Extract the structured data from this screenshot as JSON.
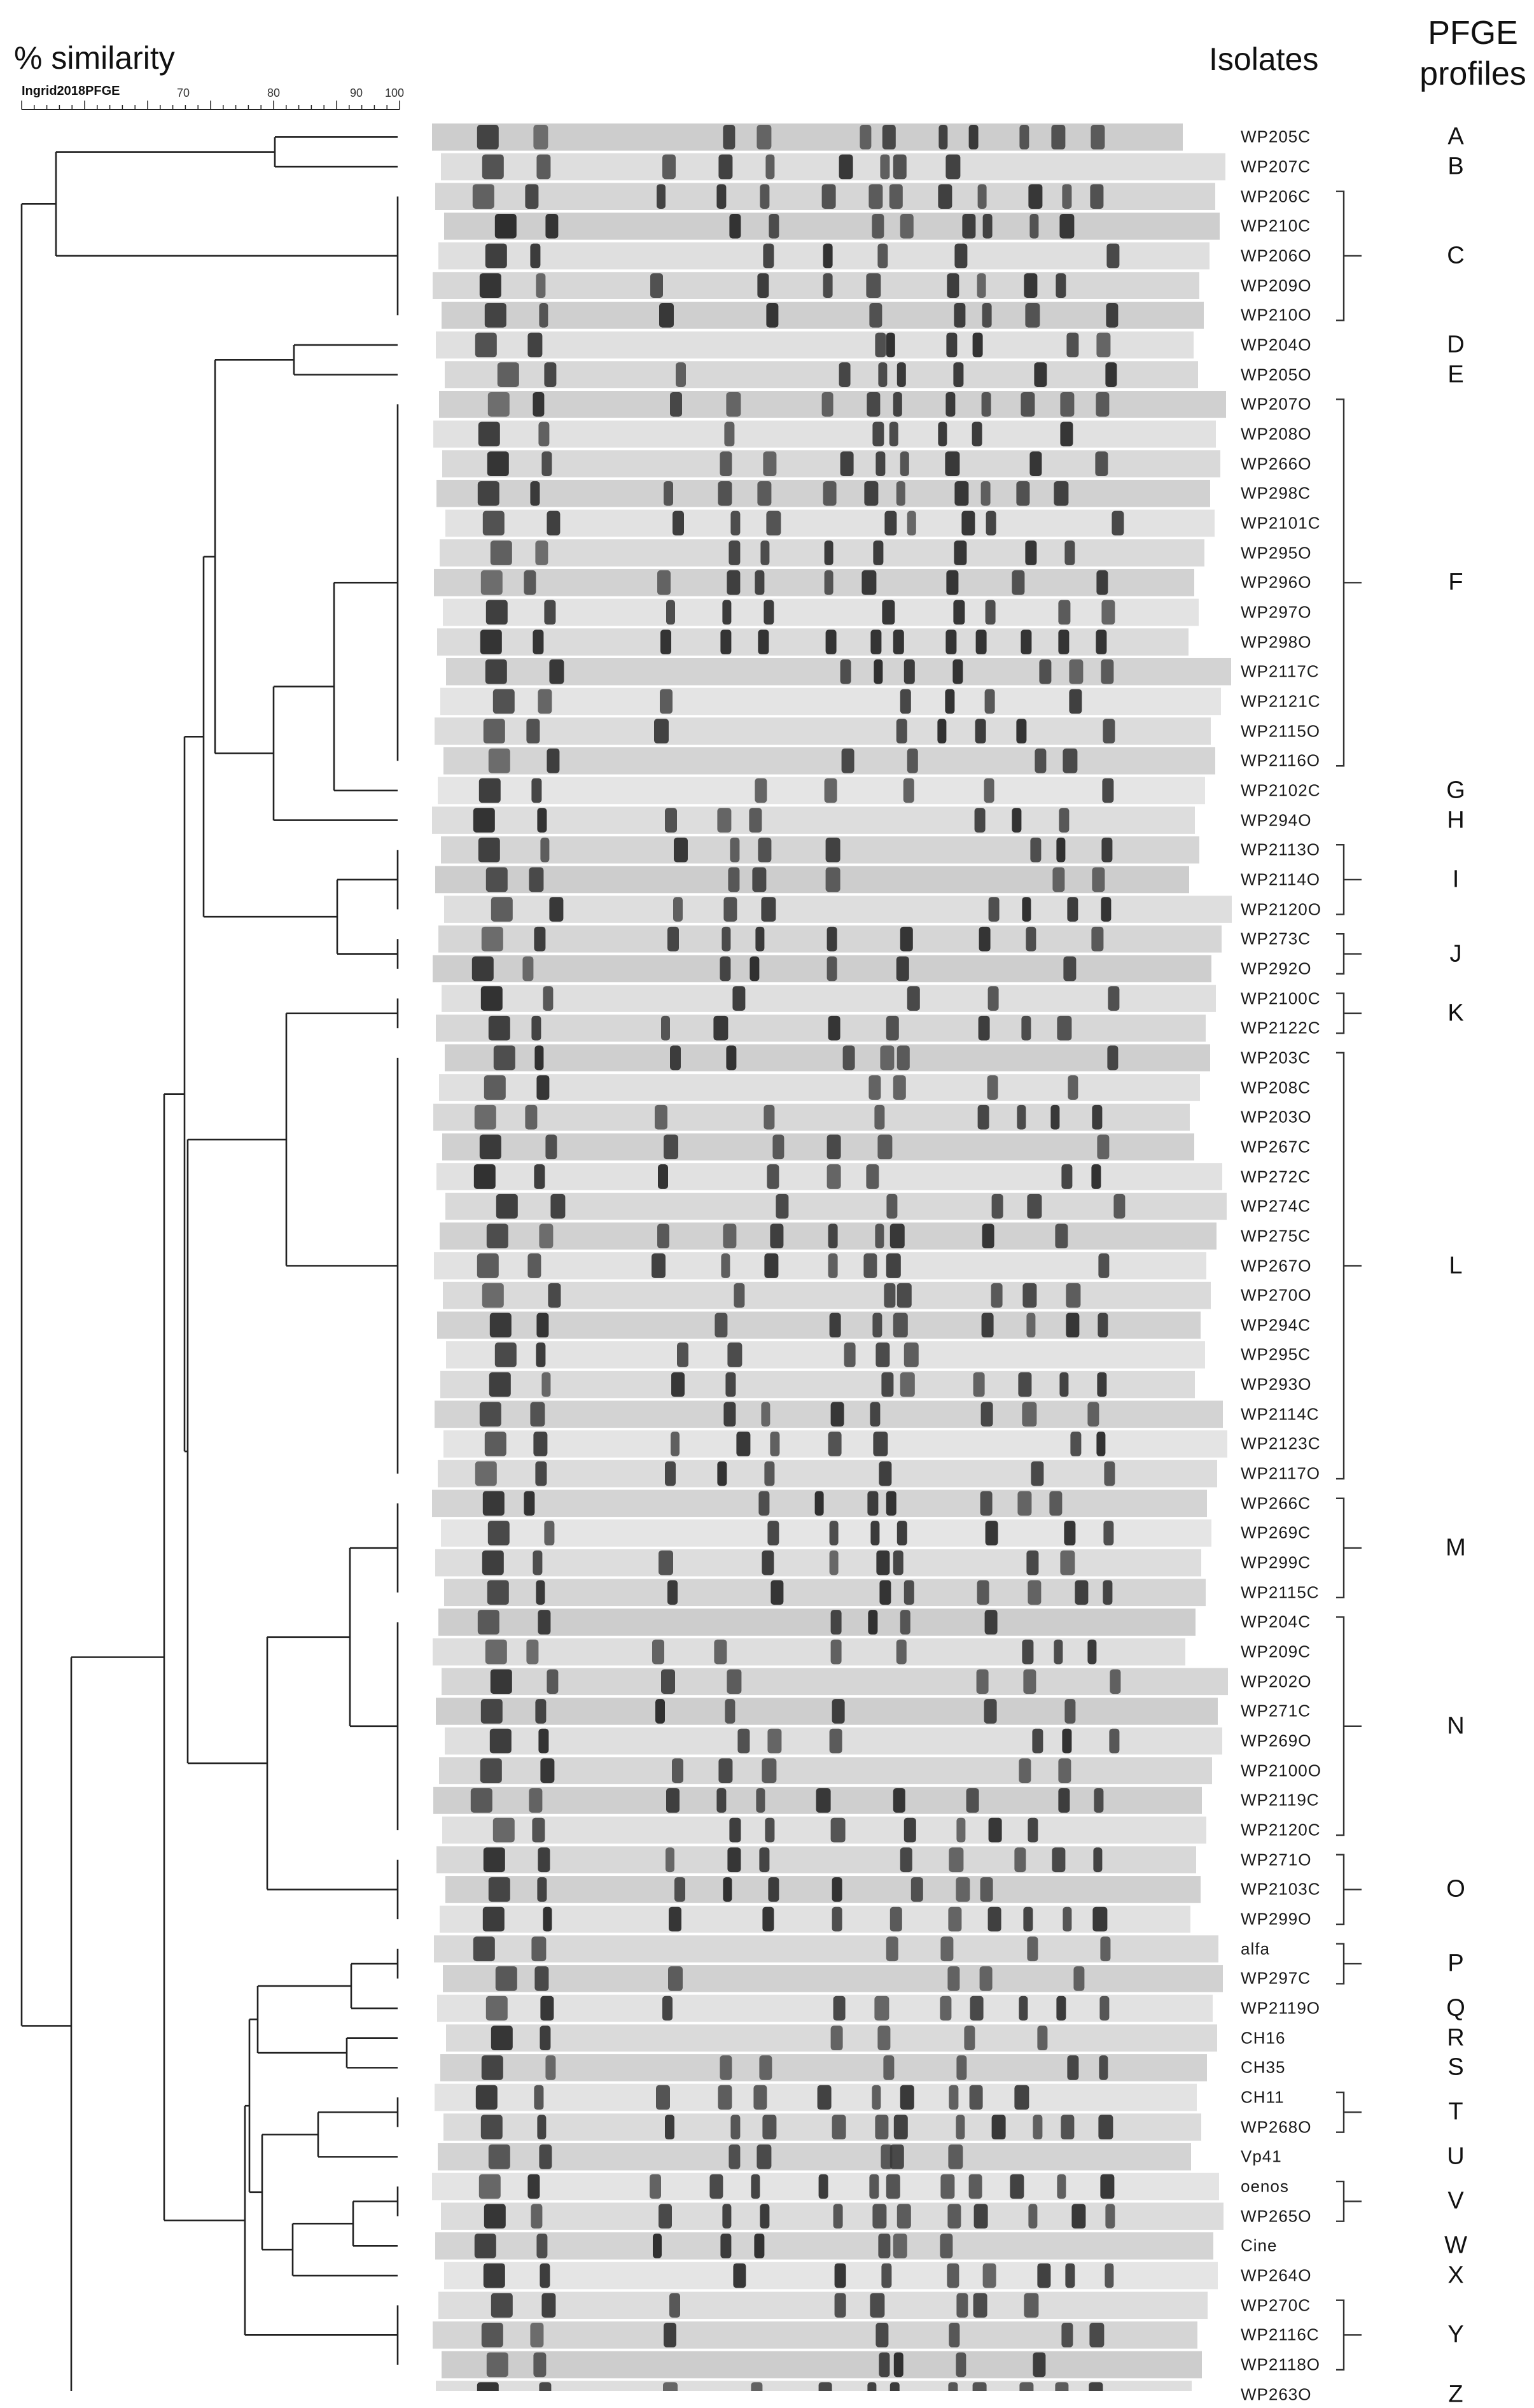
{
  "figure": {
    "similarity_title": "% similarity",
    "scale_label": "Ingrid2018PFGE",
    "isolates_header": "Isolates",
    "profiles_header_line1": "PFGE",
    "profiles_header_line2": "profiles",
    "scale_ticks": [
      "70",
      "80",
      "90",
      "100"
    ]
  },
  "lanes": [
    {
      "isolate": "WP205C"
    },
    {
      "isolate": "WP207C"
    },
    {
      "isolate": "WP206C"
    },
    {
      "isolate": "WP210C"
    },
    {
      "isolate": "WP206O"
    },
    {
      "isolate": "WP209O"
    },
    {
      "isolate": "WP210O"
    },
    {
      "isolate": "WP204O"
    },
    {
      "isolate": "WP205O"
    },
    {
      "isolate": "WP207O"
    },
    {
      "isolate": "WP208O"
    },
    {
      "isolate": "WP266O"
    },
    {
      "isolate": "WP298C"
    },
    {
      "isolate": "WP2101C"
    },
    {
      "isolate": "WP295O"
    },
    {
      "isolate": "WP296O"
    },
    {
      "isolate": "WP297O"
    },
    {
      "isolate": "WP298O"
    },
    {
      "isolate": "WP2117C"
    },
    {
      "isolate": "WP2121C"
    },
    {
      "isolate": "WP2115O"
    },
    {
      "isolate": "WP2116O"
    },
    {
      "isolate": "WP2102C"
    },
    {
      "isolate": "WP294O"
    },
    {
      "isolate": "WP2113O"
    },
    {
      "isolate": "WP2114O"
    },
    {
      "isolate": "WP2120O"
    },
    {
      "isolate": "WP273C"
    },
    {
      "isolate": "WP292O"
    },
    {
      "isolate": "WP2100C"
    },
    {
      "isolate": "WP2122C"
    },
    {
      "isolate": "WP203C"
    },
    {
      "isolate": "WP208C"
    },
    {
      "isolate": "WP203O"
    },
    {
      "isolate": "WP267C"
    },
    {
      "isolate": "WP272C"
    },
    {
      "isolate": "WP274C"
    },
    {
      "isolate": "WP275C"
    },
    {
      "isolate": "WP267O"
    },
    {
      "isolate": "WP270O"
    },
    {
      "isolate": "WP294C"
    },
    {
      "isolate": "WP295C"
    },
    {
      "isolate": "WP293O"
    },
    {
      "isolate": "WP2114C"
    },
    {
      "isolate": "WP2123C"
    },
    {
      "isolate": "WP2117O"
    },
    {
      "isolate": "WP266C"
    },
    {
      "isolate": "WP269C"
    },
    {
      "isolate": "WP299C"
    },
    {
      "isolate": "WP2115C"
    },
    {
      "isolate": "WP204C"
    },
    {
      "isolate": "WP209C"
    },
    {
      "isolate": "WP202O"
    },
    {
      "isolate": "WP271C"
    },
    {
      "isolate": "WP269O"
    },
    {
      "isolate": "WP2100O"
    },
    {
      "isolate": "WP2119C"
    },
    {
      "isolate": "WP2120C"
    },
    {
      "isolate": "WP271O"
    },
    {
      "isolate": "WP2103C"
    },
    {
      "isolate": "WP299O"
    },
    {
      "isolate": "alfa"
    },
    {
      "isolate": "WP297C"
    },
    {
      "isolate": "WP2119O"
    },
    {
      "isolate": "CH16"
    },
    {
      "isolate": "CH35"
    },
    {
      "isolate": "CH11"
    },
    {
      "isolate": "WP268O"
    },
    {
      "isolate": "Vp41"
    },
    {
      "isolate": "oenos"
    },
    {
      "isolate": "WP265O"
    },
    {
      "isolate": "Cine"
    },
    {
      "isolate": "WP264O"
    },
    {
      "isolate": "WP270C"
    },
    {
      "isolate": "WP2116C"
    },
    {
      "isolate": "WP2118O"
    },
    {
      "isolate": "WP263O"
    }
  ],
  "profiles": [
    {
      "label": "A",
      "first": 0,
      "last": 0
    },
    {
      "label": "B",
      "first": 1,
      "last": 1
    },
    {
      "label": "C",
      "first": 2,
      "last": 6
    },
    {
      "label": "D",
      "first": 7,
      "last": 7
    },
    {
      "label": "E",
      "first": 8,
      "last": 8
    },
    {
      "label": "F",
      "first": 9,
      "last": 21
    },
    {
      "label": "G",
      "first": 22,
      "last": 22
    },
    {
      "label": "H",
      "first": 23,
      "last": 23
    },
    {
      "label": "I",
      "first": 24,
      "last": 26
    },
    {
      "label": "J",
      "first": 27,
      "last": 28
    },
    {
      "label": "K",
      "first": 29,
      "last": 30
    },
    {
      "label": "L",
      "first": 31,
      "last": 45
    },
    {
      "label": "M",
      "first": 46,
      "last": 49
    },
    {
      "label": "N",
      "first": 50,
      "last": 57
    },
    {
      "label": "O",
      "first": 58,
      "last": 60
    },
    {
      "label": "P",
      "first": 61,
      "last": 62
    },
    {
      "label": "Q",
      "first": 63,
      "last": 63
    },
    {
      "label": "R",
      "first": 64,
      "last": 64
    },
    {
      "label": "S",
      "first": 65,
      "last": 65
    },
    {
      "label": "T",
      "first": 66,
      "last": 67
    },
    {
      "label": "U",
      "first": 68,
      "last": 68
    },
    {
      "label": "V",
      "first": 69,
      "last": 70
    },
    {
      "label": "W",
      "first": 71,
      "last": 71
    },
    {
      "label": "X",
      "first": 72,
      "last": 72
    },
    {
      "label": "Y",
      "first": 73,
      "last": 75
    },
    {
      "label": "Z",
      "first": 76,
      "last": 76
    }
  ]
}
